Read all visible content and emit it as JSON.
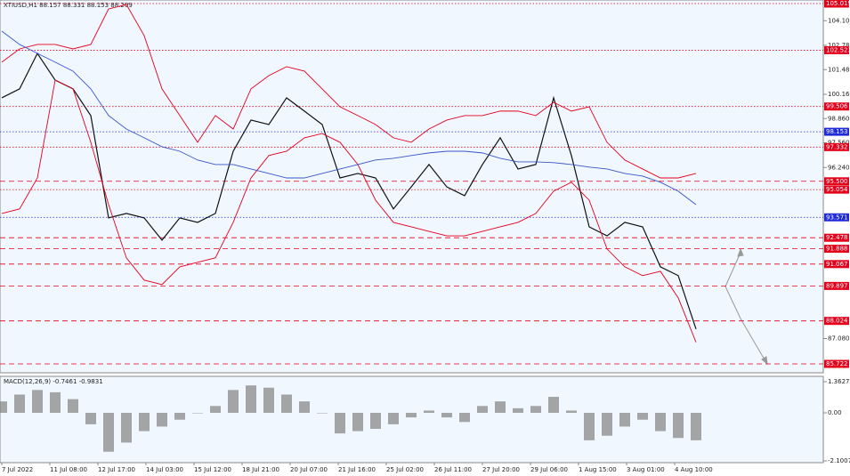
{
  "chart_data": {
    "type": "line",
    "title": "XTIUSD,H1  88.157 88.331 88.153 88.209",
    "indicator_title": "MACD(12,26,9) -0.7461 -0.9831",
    "xticks": [
      "7 Jul 2022",
      "11 Jul 08:00",
      "12 Jul 17:00",
      "14 Jul 03:00",
      "15 Jul 12:00",
      "18 Jul 21:00",
      "20 Jul 07:00",
      "21 Jul 16:00",
      "25 Jul 02:00",
      "26 Jul 11:00",
      "27 Jul 20:00",
      "29 Jul 06:00",
      "1 Aug 15:00",
      "3 Aug 01:00",
      "4 Aug 10:00"
    ],
    "ylim": [
      85.722,
      105.019
    ],
    "yticks": [
      {
        "value": 104.1,
        "label": "104.100"
      },
      {
        "value": 102.78,
        "label": "102.780"
      },
      {
        "value": 101.48,
        "label": "101.480"
      },
      {
        "value": 100.16,
        "label": "100.160"
      },
      {
        "value": 98.86,
        "label": "98.860"
      },
      {
        "value": 97.56,
        "label": "97.560"
      },
      {
        "value": 96.24,
        "label": "96.240"
      },
      {
        "value": 87.08,
        "label": "87.080"
      }
    ],
    "levels": [
      {
        "value": 105.019,
        "color": "#e3001b",
        "style": "dot"
      },
      {
        "value": 102.521,
        "color": "#e3001b",
        "style": "dot"
      },
      {
        "value": 99.506,
        "color": "#e3001b",
        "style": "dot"
      },
      {
        "value": 98.153,
        "color": "#1f2bd6",
        "style": "dot"
      },
      {
        "value": 97.332,
        "color": "#e3001b",
        "style": "dot"
      },
      {
        "value": {
          "value": 95.5,
          "label": "95.500"
        },
        "color": "#e3001b",
        "style": "dash"
      },
      {
        "value": 95.054,
        "color": "#e3001b",
        "style": "dot"
      },
      {
        "value": 93.571,
        "color": "#1f2bd6",
        "style": "dot"
      },
      {
        "value": 92.478,
        "color": "#e3001b",
        "style": "dash"
      },
      {
        "value": 91.888,
        "color": "#e3001b",
        "style": "dash"
      },
      {
        "value": 91.067,
        "color": "#e3001b",
        "style": "dash"
      },
      {
        "value": 89.897,
        "color": "#e3001b",
        "style": "dash"
      },
      {
        "value": 88.024,
        "color": "#e3001b",
        "style": "dash"
      },
      {
        "value": 85.722,
        "color": "#e3001b",
        "style": "dash"
      }
    ],
    "series": [
      {
        "name": "Price",
        "color": "#111111",
        "values": [
          99.97,
          100.45,
          102.35,
          100.92,
          100.45,
          99.02,
          93.54,
          93.78,
          93.54,
          92.35,
          93.54,
          93.3,
          93.78,
          97.11,
          98.78,
          98.54,
          99.97,
          99.26,
          98.54,
          95.68,
          95.92,
          95.68,
          94.02,
          95.2,
          96.4,
          95.2,
          94.73,
          96.4,
          97.83,
          96.16,
          96.4,
          99.97,
          96.88,
          93.06,
          92.58,
          93.3,
          93.06,
          90.92,
          90.45,
          87.59
        ]
      },
      {
        "name": "Upper band",
        "color": "#e3001b",
        "values": [
          101.88,
          102.59,
          102.83,
          102.83,
          102.59,
          102.83,
          104.73,
          104.97,
          103.3,
          100.45,
          99.02,
          97.59,
          99.02,
          98.3,
          100.45,
          101.16,
          101.64,
          101.4,
          100.45,
          99.49,
          99.02,
          98.54,
          97.83,
          97.59,
          98.3,
          98.78,
          99.02,
          99.02,
          99.26,
          99.26,
          99.02,
          99.73,
          99.26,
          99.49,
          97.59,
          96.64,
          96.16,
          95.68,
          95.68,
          95.92
        ]
      },
      {
        "name": "Lower band",
        "color": "#e3001b",
        "values": [
          93.78,
          94.02,
          95.68,
          100.92,
          100.45,
          97.59,
          94.25,
          91.4,
          90.21,
          89.97,
          90.92,
          91.16,
          91.4,
          93.3,
          95.68,
          96.88,
          97.11,
          97.83,
          98.06,
          97.59,
          96.4,
          94.49,
          93.3,
          93.06,
          92.82,
          92.58,
          92.58,
          92.82,
          93.06,
          93.3,
          93.78,
          94.97,
          95.45,
          94.49,
          91.88,
          90.92,
          90.45,
          90.68,
          89.26,
          86.88
        ]
      },
      {
        "name": "MA",
        "color": "#3a55c8",
        "values": [
          103.54,
          102.83,
          102.35,
          101.88,
          101.4,
          100.45,
          99.02,
          98.3,
          97.83,
          97.35,
          97.11,
          96.64,
          96.4,
          96.4,
          96.16,
          95.92,
          95.68,
          95.68,
          95.92,
          96.16,
          96.4,
          96.64,
          96.73,
          96.88,
          97.02,
          97.11,
          97.11,
          97.02,
          96.73,
          96.54,
          96.54,
          96.5,
          96.4,
          96.26,
          96.16,
          95.92,
          95.78,
          95.45,
          94.97,
          94.25
        ]
      }
    ],
    "macd": {
      "color": "#808080",
      "ylim": [
        -2.1007,
        1.3627
      ],
      "yticks": [
        1.3627,
        {
          "value": 0,
          "label": "0.00"
        },
        -2.1007
      ],
      "values": [
        0.5,
        0.8,
        1.0,
        0.9,
        0.6,
        -0.5,
        -1.7,
        -1.3,
        -0.8,
        -0.6,
        -0.3,
        0.0,
        0.3,
        1.0,
        1.2,
        1.1,
        0.8,
        0.5,
        0.0,
        -0.9,
        -0.8,
        -0.7,
        -0.5,
        -0.2,
        0.1,
        -0.2,
        -0.4,
        0.3,
        0.5,
        0.2,
        0.3,
        0.7,
        0.1,
        -1.2,
        -1.0,
        -0.6,
        -0.3,
        -0.8,
        -1.1,
        -1.2
      ]
    }
  }
}
